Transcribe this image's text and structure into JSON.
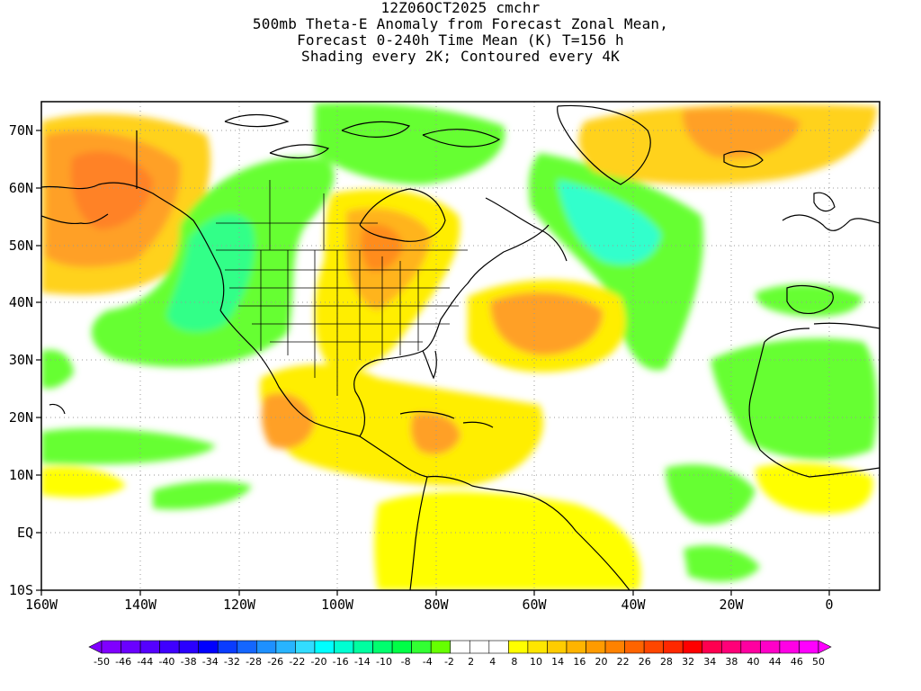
{
  "titles": {
    "line1": "12Z06OCT2025 cmchr",
    "line2": "500mb Theta-E Anomaly from Forecast Zonal Mean,",
    "line3": "Forecast 0-240h Time Mean (K) T=156 h",
    "line4": "Shading every 2K; Contoured every 4K"
  },
  "map": {
    "lon_range": [
      -160,
      10
    ],
    "lat_range": [
      -10,
      75
    ],
    "lon_tick_labels": [
      "160W",
      "140W",
      "120W",
      "100W",
      "80W",
      "60W",
      "40W",
      "20W",
      "0"
    ],
    "lat_tick_labels": [
      "70N",
      "60N",
      "50N",
      "40N",
      "30N",
      "20N",
      "10N",
      "EQ",
      "10S"
    ]
  },
  "colorbar": {
    "labels": [
      "-50",
      "-46",
      "-44",
      "-40",
      "-38",
      "-34",
      "-32",
      "-28",
      "-26",
      "-22",
      "-20",
      "-16",
      "-14",
      "-10",
      "-8",
      "-4",
      "-2",
      "2",
      "4",
      "8",
      "10",
      "14",
      "16",
      "20",
      "22",
      "26",
      "28",
      "32",
      "34",
      "38",
      "40",
      "44",
      "46",
      "50"
    ],
    "colors": [
      "#8000ff",
      "#6a00ff",
      "#5500ff",
      "#3f00ff",
      "#2a00ff",
      "#0000ff",
      "#0a3cff",
      "#1466ff",
      "#1e90ff",
      "#28b4ff",
      "#32dcff",
      "#00ffff",
      "#00ffd2",
      "#00ffa0",
      "#00ff6e",
      "#00ff46",
      "#32ff32",
      "#66ff00",
      "#ffffff",
      "#ffffff",
      "#ffffff",
      "#ffff00",
      "#ffe600",
      "#ffcc00",
      "#ffb400",
      "#ff9b00",
      "#ff8200",
      "#ff6400",
      "#ff4600",
      "#ff2800",
      "#ff0000",
      "#ff0050",
      "#ff0078",
      "#ff00a0",
      "#ff00c8",
      "#ff00e6",
      "#ff00ff"
    ]
  },
  "colors": {
    "green": "#66ff33",
    "green_mid": "#33ff66",
    "cyan": "#33ffcc",
    "yellow": "#ffff00",
    "gold": "#ffd700",
    "orange": "#ffa500",
    "orange_dark": "#ff8c00",
    "orange_red": "#ff7000"
  }
}
